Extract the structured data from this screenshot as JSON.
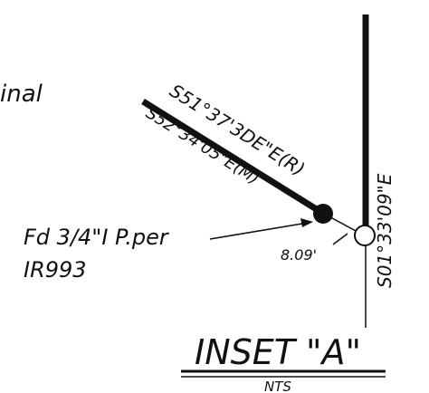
{
  "drawing": {
    "partial_note": "inal",
    "bearing_record": "S51°37'3DE\"E(R)",
    "bearing_measured": "S52°34'05\"E(M)",
    "bearing_vertical": "S01°33'09\"E",
    "offset_label": "8.09'",
    "monument_line1": "Fd 3/4\"I P.per",
    "monument_line2": "IR993",
    "inset_title": "INSET \"A\"",
    "scale_note": "NTS",
    "colors": {
      "ink": "#111111",
      "paper": "#ffffff"
    }
  }
}
